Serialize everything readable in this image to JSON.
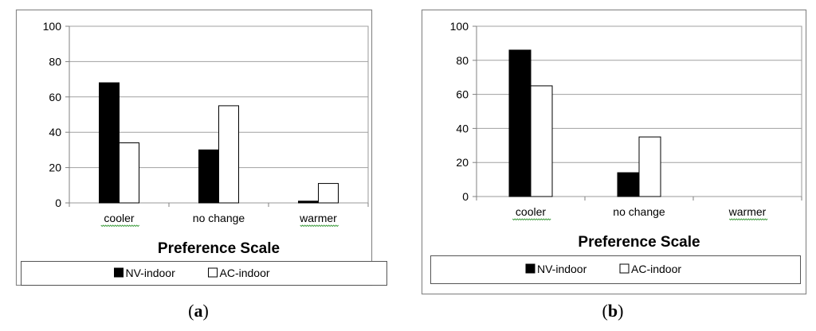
{
  "chart_data": [
    {
      "type": "bar",
      "panel_label": "a",
      "categories": [
        "cooler",
        "no change",
        "warmer"
      ],
      "series": [
        {
          "name": "NV-indoor",
          "values": [
            68,
            30,
            1
          ],
          "color": "#000000"
        },
        {
          "name": "AC-indoor",
          "values": [
            34,
            55,
            11
          ],
          "color": "#ffffff"
        }
      ],
      "xlabel": "Preference Scale",
      "ylabel": "",
      "ylim": [
        0,
        100
      ],
      "yticks": [
        0,
        20,
        40,
        60,
        80,
        100
      ],
      "grid": true,
      "legend_position": "bottom"
    },
    {
      "type": "bar",
      "panel_label": "b",
      "categories": [
        "cooler",
        "no change",
        "warmer"
      ],
      "series": [
        {
          "name": "NV-indoor",
          "values": [
            86,
            14,
            0
          ],
          "color": "#000000"
        },
        {
          "name": "AC-indoor",
          "values": [
            65,
            35,
            0
          ],
          "color": "#ffffff"
        }
      ],
      "xlabel": "Preference Scale",
      "ylabel": "",
      "ylim": [
        0,
        100
      ],
      "yticks": [
        0,
        20,
        40,
        60,
        80,
        100
      ],
      "grid": true,
      "legend_position": "bottom"
    }
  ]
}
